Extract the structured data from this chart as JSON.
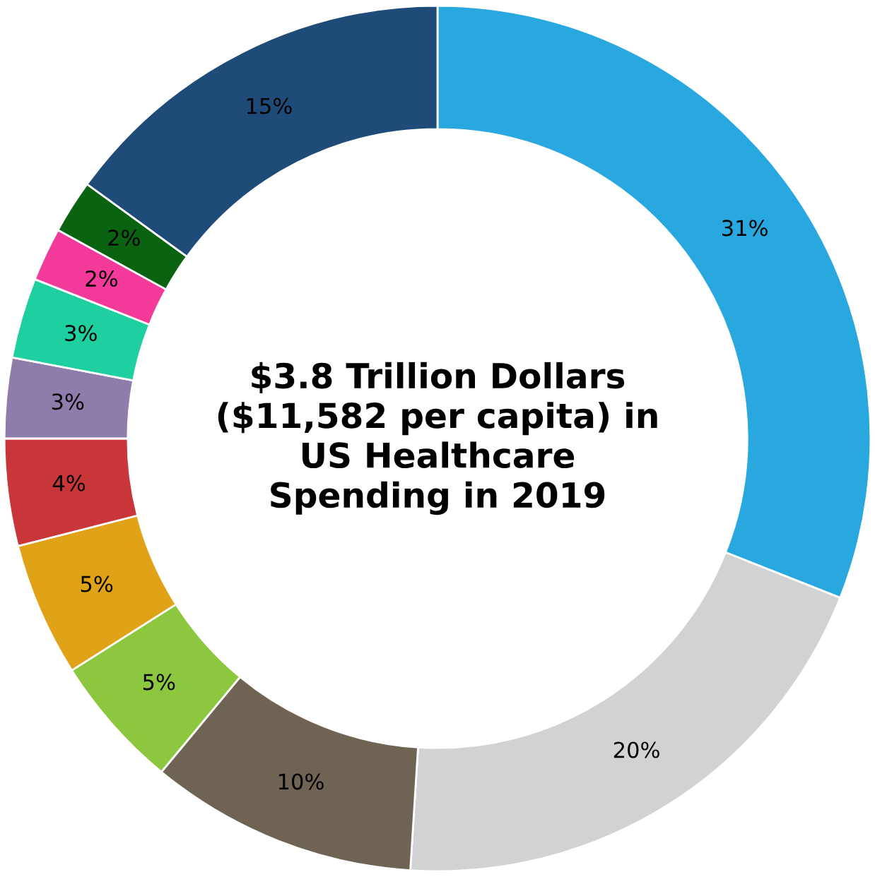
{
  "chart_data": {
    "type": "donut",
    "title": "$3.8 Trillion Dollars\n($11,582 per capita) in\nUS Healthcare\nSpending in 2019",
    "categories": [
      null,
      null,
      null,
      null,
      null,
      null,
      null,
      null,
      null,
      null,
      null
    ],
    "values": [
      31,
      20,
      10,
      5,
      5,
      4,
      3,
      3,
      2,
      2,
      15
    ],
    "value_labels": [
      "31%",
      "20%",
      "10%",
      "5%",
      "5%",
      "4%",
      "3%",
      "3%",
      "2%",
      "2%",
      "15%"
    ],
    "colors": [
      "#29a8e0",
      "#d0d2d4",
      "#6f6353",
      "#8dc63f",
      "#e0a317",
      "#c9363a",
      "#8e7cab",
      "#1ecf9f",
      "#f3399a",
      "#0a6310",
      "#1f4b78"
    ],
    "legend": false
  }
}
